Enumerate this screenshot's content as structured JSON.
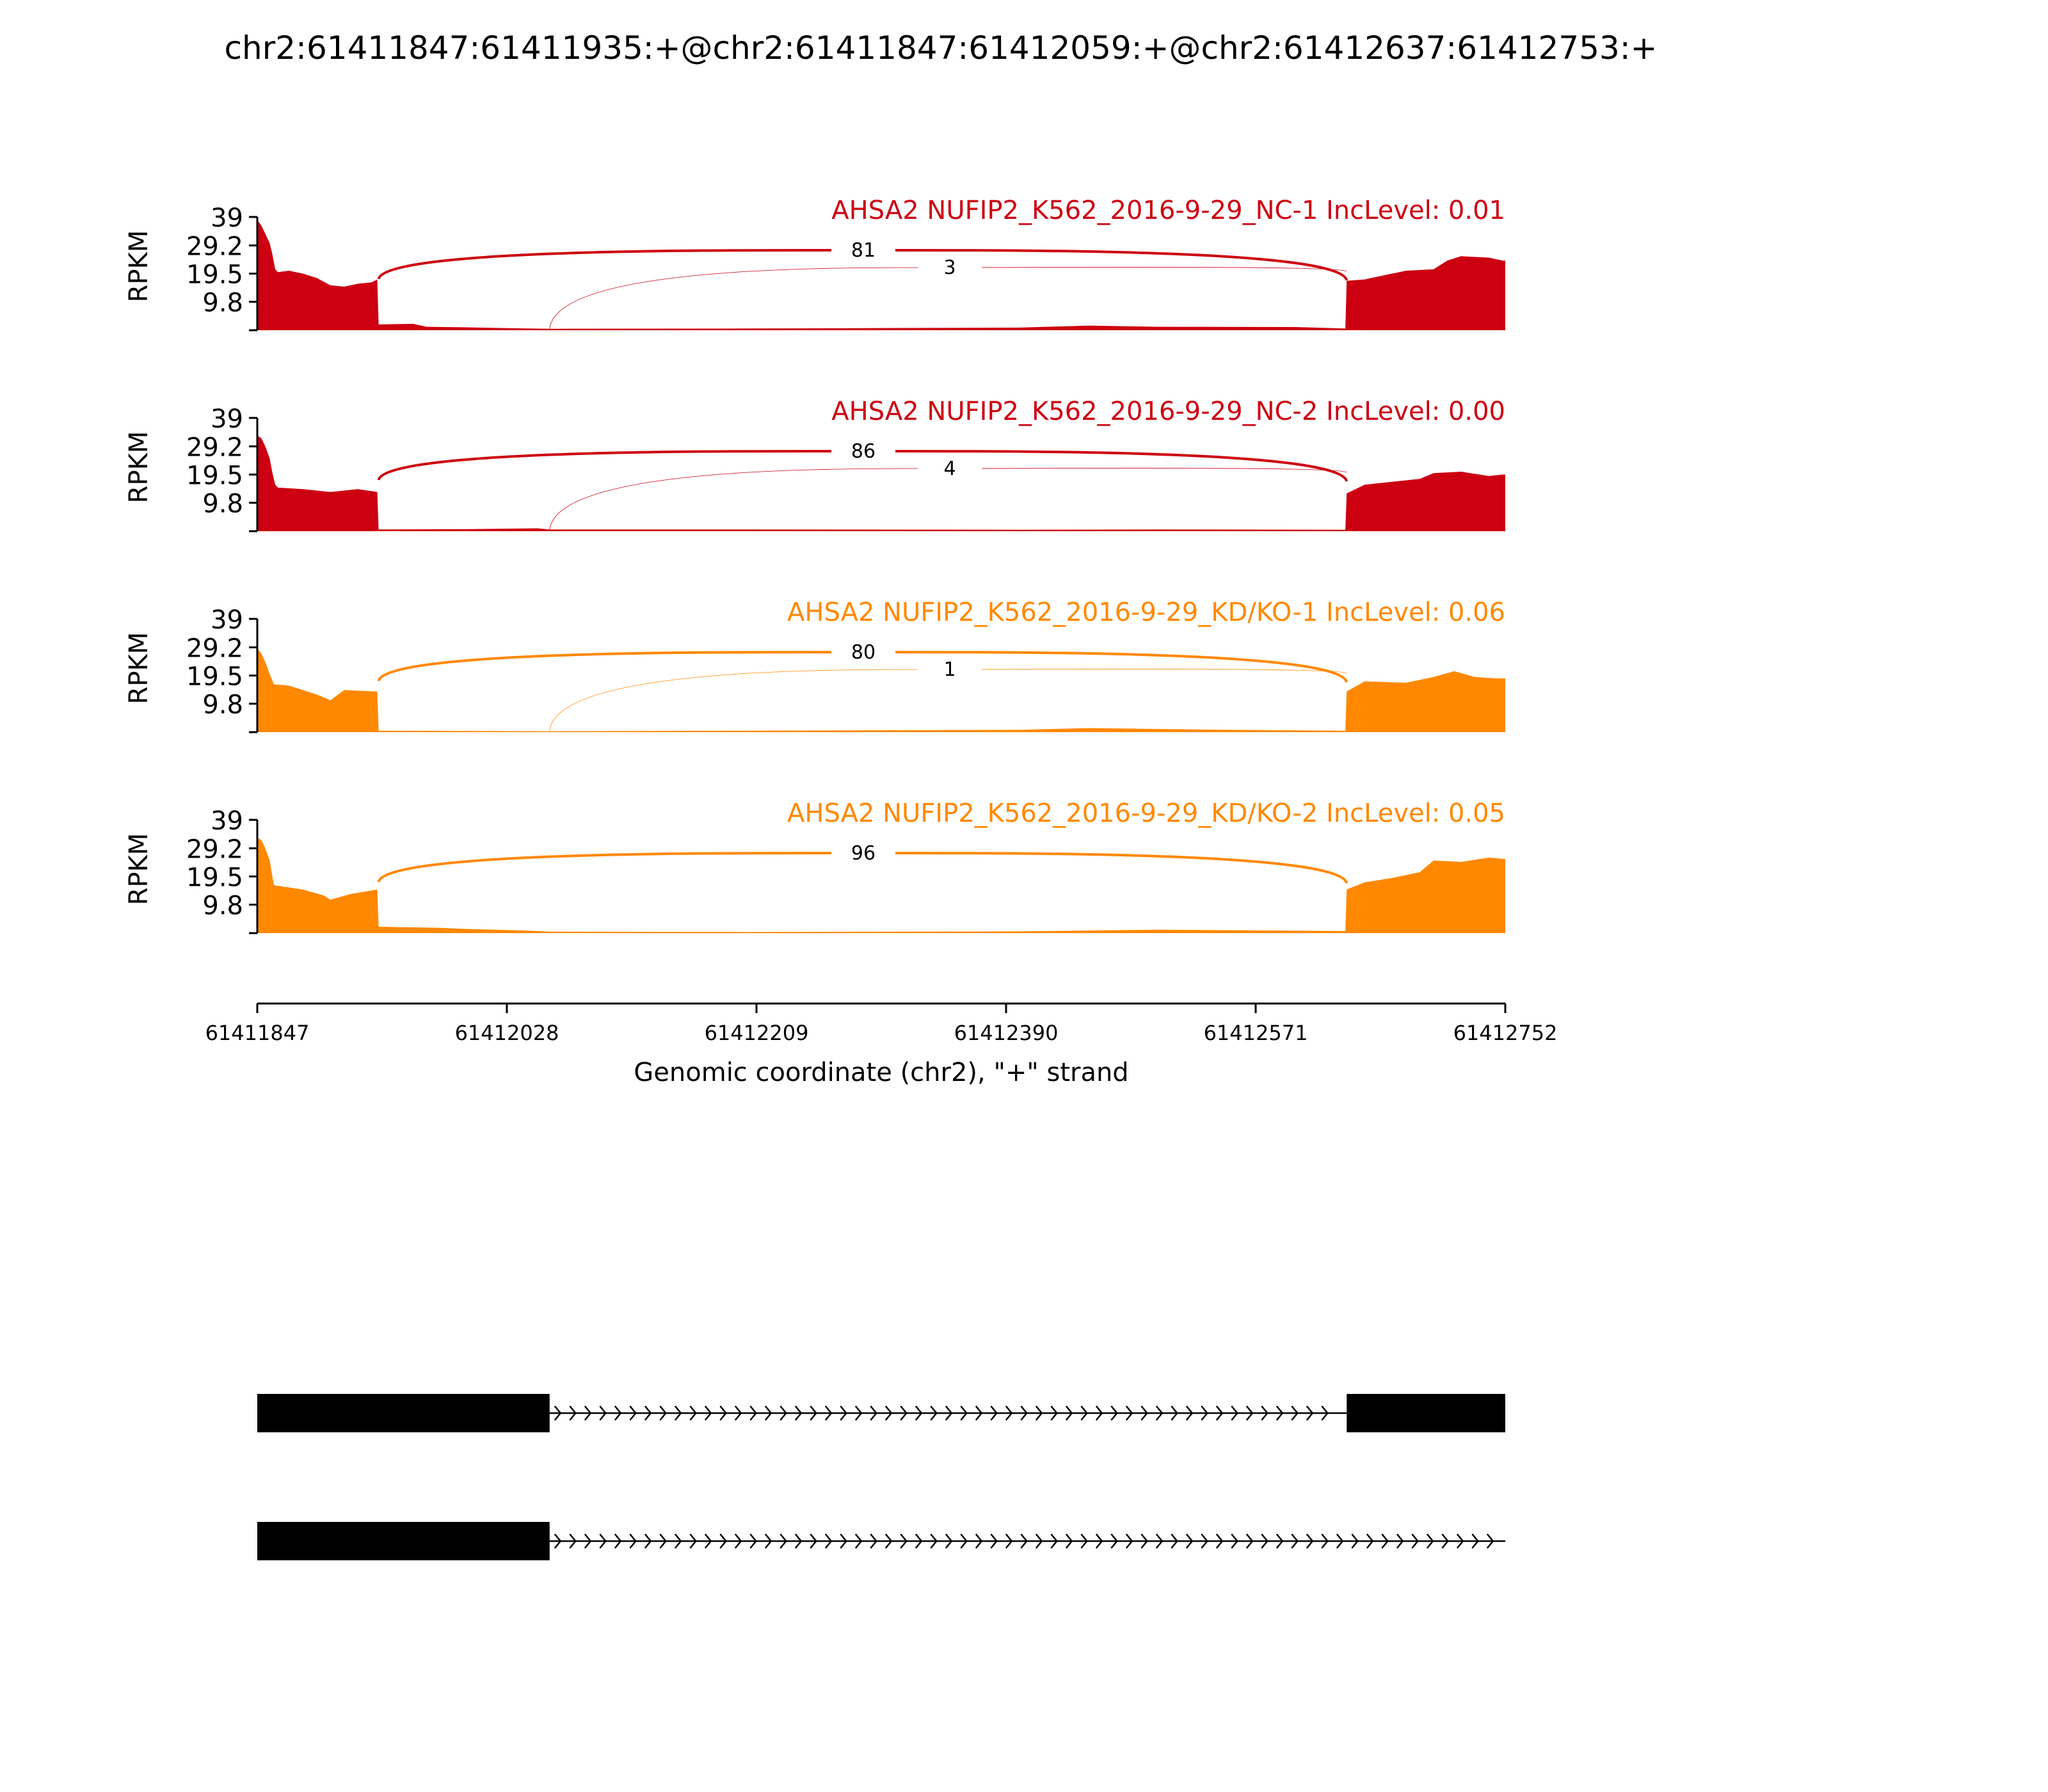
{
  "chart_data": {
    "type": "sashimi",
    "title": "chr2:61411847:61411935:+@chr2:61411847:61412059:+@chr2:61412637:61412753:+",
    "xlabel": "Genomic coordinate (chr2), \"+\" strand",
    "ylabel": "RPKM",
    "xlim": [
      61411847,
      61412752
    ],
    "xticks": [
      "61411847",
      "61412028",
      "61412209",
      "61412390",
      "61412571",
      "61412752"
    ],
    "xtick_values": [
      61411847,
      61412028,
      61412209,
      61412390,
      61412571,
      61412752
    ],
    "ylim": [
      0,
      39
    ],
    "yticks": [
      "39",
      "29.2",
      "19.5",
      "9.8"
    ],
    "ytick_values": [
      39,
      29.2,
      19.5,
      9.8
    ],
    "tracks": [
      {
        "label": "AHSA2 NUFIP2_K562_2016-9-29_NC-1 IncLevel: 0.01",
        "color": "#cc0011",
        "junctions": [
          {
            "start": 61411935,
            "end": 61412637,
            "count": "81"
          },
          {
            "start": 61412059,
            "end": 61412637,
            "count": "3"
          }
        ],
        "coverage": [
          [
            61411847,
            38
          ],
          [
            61411850,
            36
          ],
          [
            61411853,
            33
          ],
          [
            61411856,
            30
          ],
          [
            61411858,
            26
          ],
          [
            61411860,
            21
          ],
          [
            61411862,
            20
          ],
          [
            61411870,
            20.5
          ],
          [
            61411880,
            19.5
          ],
          [
            61411890,
            18
          ],
          [
            61411900,
            15.5
          ],
          [
            61411910,
            15
          ],
          [
            61411920,
            16
          ],
          [
            61411930,
            16.5
          ],
          [
            61411934,
            17.5
          ],
          [
            61411935,
            2
          ],
          [
            61411960,
            2.2
          ],
          [
            61411970,
            1.2
          ],
          [
            61412000,
            1
          ],
          [
            61412030,
            0.7
          ],
          [
            61412059,
            0.5
          ],
          [
            61412060,
            0.5
          ],
          [
            61412200,
            0.6
          ],
          [
            61412400,
            0.9
          ],
          [
            61412450,
            1.6
          ],
          [
            61412500,
            1.2
          ],
          [
            61412600,
            1.1
          ],
          [
            61412636,
            0.6
          ],
          [
            61412637,
            17
          ],
          [
            61412650,
            17.5
          ],
          [
            61412660,
            18.5
          ],
          [
            61412680,
            20.5
          ],
          [
            61412700,
            21
          ],
          [
            61412710,
            24
          ],
          [
            61412720,
            25.5
          ],
          [
            61412740,
            25
          ],
          [
            61412750,
            24
          ],
          [
            61412752,
            24
          ]
        ]
      },
      {
        "label": "AHSA2 NUFIP2_K562_2016-9-29_NC-2 IncLevel: 0.00",
        "color": "#cc0011",
        "junctions": [
          {
            "start": 61411935,
            "end": 61412637,
            "count": "86"
          },
          {
            "start": 61412059,
            "end": 61412637,
            "count": "4"
          }
        ],
        "coverage": [
          [
            61411847,
            33
          ],
          [
            61411850,
            32
          ],
          [
            61411853,
            29
          ],
          [
            61411856,
            25
          ],
          [
            61411858,
            20
          ],
          [
            61411860,
            16
          ],
          [
            61411862,
            15
          ],
          [
            61411880,
            14.5
          ],
          [
            61411900,
            13.5
          ],
          [
            61411920,
            14.5
          ],
          [
            61411934,
            13.5
          ],
          [
            61411935,
            0.6
          ],
          [
            61412000,
            0.7
          ],
          [
            61412050,
            1
          ],
          [
            61412059,
            0.6
          ],
          [
            61412200,
            0.6
          ],
          [
            61412400,
            0.5
          ],
          [
            61412500,
            0.6
          ],
          [
            61412636,
            0.5
          ],
          [
            61412637,
            13
          ],
          [
            61412650,
            16
          ],
          [
            61412670,
            17
          ],
          [
            61412690,
            18
          ],
          [
            61412700,
            20
          ],
          [
            61412720,
            20.5
          ],
          [
            61412740,
            19
          ],
          [
            61412750,
            19.5
          ],
          [
            61412752,
            19.5
          ]
        ]
      },
      {
        "label": "AHSA2 NUFIP2_K562_2016-9-29_KD/KO-1 IncLevel: 0.06",
        "color": "#ff8800",
        "junctions": [
          {
            "start": 61411935,
            "end": 61412637,
            "count": "80"
          },
          {
            "start": 61412059,
            "end": 61412637,
            "count": "1"
          }
        ],
        "coverage": [
          [
            61411847,
            29
          ],
          [
            61411850,
            27
          ],
          [
            61411853,
            24
          ],
          [
            61411856,
            20
          ],
          [
            61411859,
            16.5
          ],
          [
            61411870,
            16
          ],
          [
            61411890,
            13
          ],
          [
            61411900,
            11
          ],
          [
            61411910,
            14.5
          ],
          [
            61411934,
            14
          ],
          [
            61411935,
            0.5
          ],
          [
            61412059,
            0.3
          ],
          [
            61412200,
            0.5
          ],
          [
            61412400,
            0.8
          ],
          [
            61412450,
            1.4
          ],
          [
            61412550,
            0.8
          ],
          [
            61412636,
            0.5
          ],
          [
            61412637,
            14
          ],
          [
            61412650,
            17.5
          ],
          [
            61412680,
            17
          ],
          [
            61412700,
            19
          ],
          [
            61412715,
            21
          ],
          [
            61412730,
            19
          ],
          [
            61412745,
            18.5
          ],
          [
            61412752,
            18.5
          ]
        ]
      },
      {
        "label": "AHSA2 NUFIP2_K562_2016-9-29_KD/KO-2 IncLevel: 0.05",
        "color": "#ff8800",
        "junctions": [
          {
            "start": 61411935,
            "end": 61412637,
            "count": "96"
          }
        ],
        "coverage": [
          [
            61411847,
            33
          ],
          [
            61411850,
            32
          ],
          [
            61411853,
            29
          ],
          [
            61411856,
            25
          ],
          [
            61411859,
            16.5
          ],
          [
            61411880,
            15
          ],
          [
            61411895,
            13
          ],
          [
            61411900,
            11.5
          ],
          [
            61411915,
            13.5
          ],
          [
            61411934,
            15
          ],
          [
            61411935,
            2.2
          ],
          [
            61411980,
            1.8
          ],
          [
            61412000,
            1.4
          ],
          [
            61412040,
            0.9
          ],
          [
            61412060,
            0.5
          ],
          [
            61412200,
            0.4
          ],
          [
            61412400,
            0.6
          ],
          [
            61412500,
            1.2
          ],
          [
            61412636,
            0.7
          ],
          [
            61412637,
            15
          ],
          [
            61412650,
            17.5
          ],
          [
            61412670,
            19
          ],
          [
            61412690,
            21
          ],
          [
            61412700,
            25
          ],
          [
            61412720,
            24.5
          ],
          [
            61412740,
            26
          ],
          [
            61412752,
            25.5
          ]
        ]
      }
    ],
    "transcripts": [
      {
        "exons": [
          [
            61411847,
            61412059
          ],
          [
            61412637,
            61412752
          ]
        ],
        "intron": [
          61412059,
          61412637
        ]
      },
      {
        "exons": [
          [
            61411847,
            61412059
          ]
        ],
        "intron": [
          61412059,
          61412752
        ]
      }
    ]
  }
}
